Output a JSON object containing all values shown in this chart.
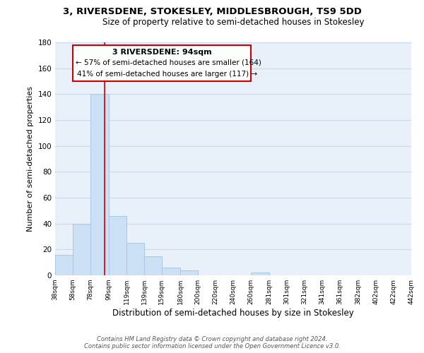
{
  "title": "3, RIVERSDENE, STOKESLEY, MIDDLESBROUGH, TS9 5DD",
  "subtitle": "Size of property relative to semi-detached houses in Stokesley",
  "xlabel": "Distribution of semi-detached houses by size in Stokesley",
  "ylabel": "Number of semi-detached properties",
  "bar_heights": [
    16,
    40,
    140,
    46,
    25,
    15,
    6,
    4,
    0,
    0,
    0,
    2,
    0,
    0,
    0,
    0,
    0,
    0,
    0,
    0
  ],
  "bin_edges": [
    38,
    58,
    78,
    99,
    119,
    139,
    159,
    180,
    200,
    220,
    240,
    260,
    281,
    301,
    321,
    341,
    361,
    382,
    402,
    422,
    442
  ],
  "tick_labels": [
    "38sqm",
    "58sqm",
    "78sqm",
    "99sqm",
    "119sqm",
    "139sqm",
    "159sqm",
    "180sqm",
    "200sqm",
    "220sqm",
    "240sqm",
    "260sqm",
    "281sqm",
    "301sqm",
    "321sqm",
    "341sqm",
    "361sqm",
    "382sqm",
    "402sqm",
    "422sqm",
    "442sqm"
  ],
  "bar_color": "#cce0f5",
  "bar_edge_color": "#a8c8e8",
  "vline_x": 94,
  "vline_color": "#cc0000",
  "ylim": [
    0,
    180
  ],
  "yticks": [
    0,
    20,
    40,
    60,
    80,
    100,
    120,
    140,
    160,
    180
  ],
  "annotation_title": "3 RIVERSDENE: 94sqm",
  "annotation_line1": "← 57% of semi-detached houses are smaller (164)",
  "annotation_line2": "41% of semi-detached houses are larger (117) →",
  "annotation_box_color": "#ffffff",
  "annotation_box_edge": "#cc0000",
  "footer_line1": "Contains HM Land Registry data © Crown copyright and database right 2024.",
  "footer_line2": "Contains public sector information licensed under the Open Government Licence v3.0.",
  "background_color": "#ffffff",
  "plot_bg_color": "#e8f0fa",
  "grid_color": "#c8d8ec",
  "title_fontsize": 9.5,
  "subtitle_fontsize": 8.5
}
